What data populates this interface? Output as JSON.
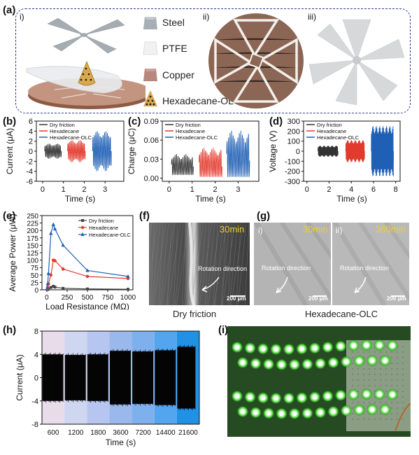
{
  "panel_a": {
    "label": "(a)",
    "sub_i": "i)",
    "sub_ii": "ii)",
    "sub_iii": "iii)",
    "legend": [
      {
        "name": "Steel",
        "color": "#a7aeb4"
      },
      {
        "name": "PTFE",
        "color": "#eeeeee"
      },
      {
        "name": "Copper",
        "color": "#b6877a"
      },
      {
        "name": "Hexadecane-OLC",
        "color": "#d9a84c"
      }
    ]
  },
  "panel_b": {
    "label": "(b)"
  },
  "panel_c": {
    "label": "(c)"
  },
  "panel_d": {
    "label": "(d)"
  },
  "panel_e": {
    "label": "(e)"
  },
  "panel_f": {
    "label": "(f)",
    "time": "30min",
    "rotation": "Rotation direction",
    "scale": "200 μm",
    "caption": "Dry friction"
  },
  "panel_g": {
    "label": "(g)",
    "sub_i": "i)",
    "sub_ii": "ii)",
    "time_i": "30min",
    "time_ii": "360min",
    "rotation_i": "Rotation direction",
    "rotation_ii": "Rotation direction",
    "scale_i": "200 μm",
    "scale_ii": "200 μm",
    "caption": "Hexadecane-OLC"
  },
  "panel_h": {
    "label": "(h)"
  },
  "panel_i": {
    "label": "(i)"
  },
  "chart_data": [
    {
      "id": "b",
      "type": "line",
      "xlabel": "Time (s)",
      "ylabel": "Current (μA)",
      "xticks": [
        0,
        1,
        2,
        3
      ],
      "yticks": [
        -6,
        -4,
        -2,
        0,
        2,
        4,
        6
      ],
      "xlim": [
        -0.3,
        3.9
      ],
      "ylim": [
        -6,
        6
      ],
      "series": [
        {
          "name": "Dry friction",
          "color": "#333333",
          "x_range": [
            0.1,
            0.9
          ],
          "amplitude": 1.5,
          "cycles": 12
        },
        {
          "name": "Hexadecane",
          "color": "#e23b2e",
          "x_range": [
            1.2,
            2.05
          ],
          "amplitude": 2.2,
          "cycles": 13
        },
        {
          "name": "Hexadecane-OLC",
          "color": "#1f5fb5",
          "x_range": [
            2.4,
            3.3
          ],
          "amplitude": 4.0,
          "cycles": 13
        }
      ]
    },
    {
      "id": "c",
      "type": "line",
      "xlabel": "Time (s)",
      "ylabel": "Charge (μC)",
      "xticks": [
        0,
        1,
        2,
        3
      ],
      "yticks": [
        0.0,
        0.03,
        0.06,
        0.09
      ],
      "ytick_labels": [
        "0.00",
        "0.03",
        "0.06",
        "0.09"
      ],
      "xlim": [
        -0.3,
        3.9
      ],
      "ylim": [
        -0.005,
        0.09
      ],
      "series": [
        {
          "name": "Dry friction",
          "color": "#333333",
          "x_range": [
            0.1,
            1.05
          ],
          "min": 0.005,
          "max": 0.038,
          "cycles": 14
        },
        {
          "name": "Hexadecane",
          "color": "#e23b2e",
          "x_range": [
            1.3,
            2.3
          ],
          "min": 0.002,
          "max": 0.048,
          "cycles": 15
        },
        {
          "name": "Hexadecane-OLC",
          "color": "#1f5fb5",
          "x_range": [
            2.5,
            3.5
          ],
          "min": 0.002,
          "max": 0.075,
          "cycles": 15
        }
      ]
    },
    {
      "id": "d",
      "type": "line",
      "xlabel": "Time (s)",
      "ylabel": "Voltage (V)",
      "xticks": [
        0,
        2,
        4,
        6,
        8
      ],
      "yticks": [
        -300,
        -200,
        -100,
        0,
        100,
        200,
        300
      ],
      "xlim": [
        -0.3,
        8.4
      ],
      "ylim": [
        -300,
        300
      ],
      "series": [
        {
          "name": "Dry friction",
          "color": "#333333",
          "x_range": [
            1.0,
            2.8
          ],
          "amplitude": 55,
          "cycles": 30
        },
        {
          "name": "Hexadecane",
          "color": "#e23b2e",
          "x_range": [
            3.5,
            5.2
          ],
          "amplitude": 110,
          "cycles": 30
        },
        {
          "name": "Hexadecane-OLC",
          "color": "#1f5fb5",
          "x_range": [
            5.8,
            7.8
          ],
          "amplitude": 250,
          "cycles": 40
        }
      ]
    },
    {
      "id": "e",
      "type": "line",
      "xlabel": "Load Resistance (MΩ)",
      "ylabel": "Average Power (μW)",
      "xticks": [
        0,
        250,
        500,
        750,
        1000
      ],
      "yticks": [
        0,
        25,
        50,
        75,
        100,
        125,
        150,
        175,
        200,
        225,
        250
      ],
      "xlim": [
        -60,
        1060
      ],
      "ylim": [
        0,
        250
      ],
      "x": [
        5,
        10,
        20,
        50,
        80,
        100,
        200,
        500,
        1000
      ],
      "series": [
        {
          "name": "Dry friction",
          "color": "#444444",
          "marker": "square",
          "values": [
            0.5,
            1,
            3,
            8,
            12,
            9,
            5,
            3,
            2
          ]
        },
        {
          "name": "Hexadecane",
          "color": "#e23b2e",
          "marker": "circle",
          "values": [
            2,
            8,
            20,
            50,
            100,
            98,
            70,
            45,
            38
          ]
        },
        {
          "name": "Hexadecane-OLC",
          "color": "#1f5fb5",
          "marker": "triangle",
          "values": [
            5,
            20,
            55,
            190,
            220,
            205,
            150,
            65,
            45
          ]
        }
      ]
    },
    {
      "id": "h",
      "type": "area",
      "xlabel": "Time (s)",
      "ylabel": "Current (μA)",
      "xtick_labels": [
        "600",
        "1200",
        "1800",
        "3600",
        "7200",
        "14400",
        "21600"
      ],
      "yticks": [
        -8,
        -4,
        0,
        4,
        8
      ],
      "ylim": [
        -8,
        8
      ],
      "bands": [
        {
          "color": "#e8dceb",
          "amp": 4.0
        },
        {
          "color": "#cfd6ef",
          "amp": 3.9
        },
        {
          "color": "#b7c6f0",
          "amp": 4.0
        },
        {
          "color": "#9bb8ec",
          "amp": 4.6
        },
        {
          "color": "#7fb0ee",
          "amp": 4.5
        },
        {
          "color": "#53a5ee",
          "amp": 4.7
        },
        {
          "color": "#2191e4",
          "amp": 5.3
        }
      ]
    }
  ]
}
